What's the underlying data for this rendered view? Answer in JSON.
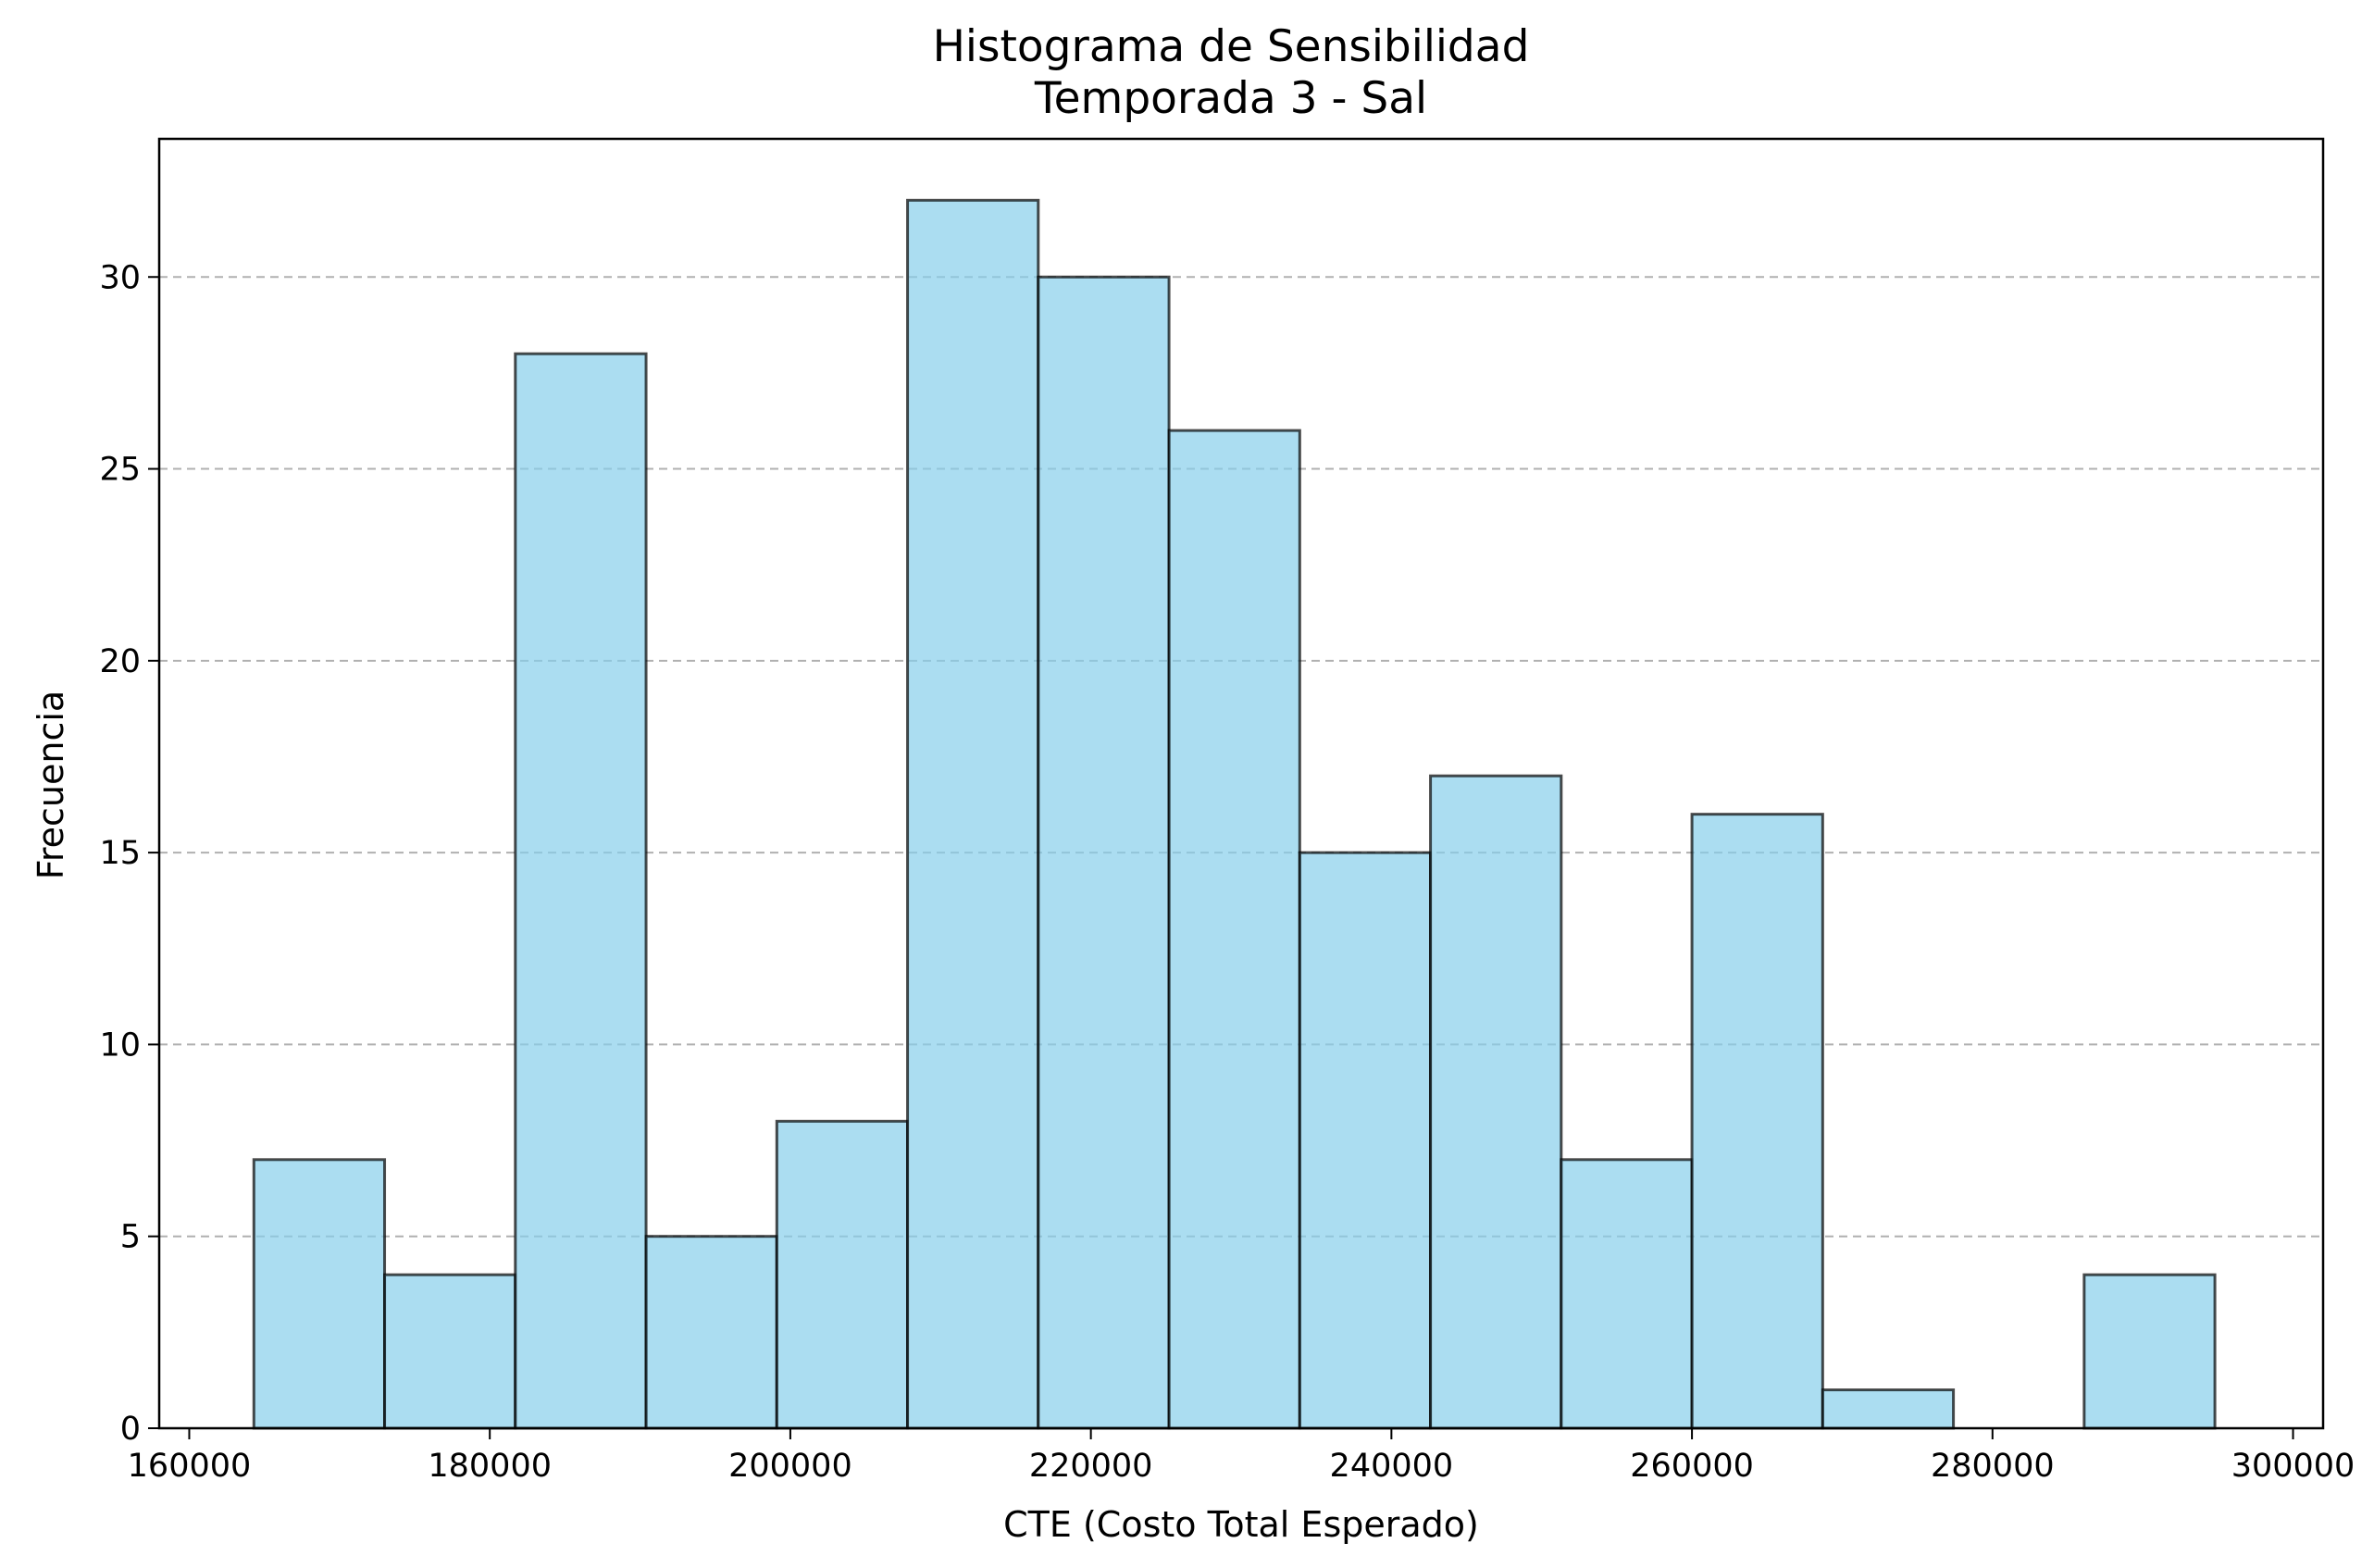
{
  "chart_data": {
    "type": "bar",
    "title": "Histograma de Sensibilidad",
    "subtitle": "Temporada 3 - Sal",
    "xlabel": "CTE (Costo Total Esperado)",
    "ylabel": "Frecuencia",
    "xlim": [
      158000,
      302000
    ],
    "ylim": [
      0,
      33.6
    ],
    "xticks": [
      160000,
      180000,
      200000,
      220000,
      240000,
      260000,
      280000,
      300000
    ],
    "yticks": [
      0,
      5,
      10,
      15,
      20,
      25,
      30
    ],
    "grid": "y-dashed",
    "bar_color": "#87CEEB",
    "edge_color": "#000000",
    "bins": [
      {
        "start": 164300,
        "end": 173000,
        "count": 7
      },
      {
        "start": 173000,
        "end": 181700,
        "count": 4
      },
      {
        "start": 181700,
        "end": 190400,
        "count": 28
      },
      {
        "start": 190400,
        "end": 199100,
        "count": 5
      },
      {
        "start": 199100,
        "end": 207800,
        "count": 8
      },
      {
        "start": 207800,
        "end": 216500,
        "count": 32
      },
      {
        "start": 216500,
        "end": 225200,
        "count": 30
      },
      {
        "start": 225200,
        "end": 233900,
        "count": 26
      },
      {
        "start": 233900,
        "end": 242600,
        "count": 15
      },
      {
        "start": 242600,
        "end": 251300,
        "count": 17
      },
      {
        "start": 251300,
        "end": 260000,
        "count": 7
      },
      {
        "start": 260000,
        "end": 268700,
        "count": 16
      },
      {
        "start": 268700,
        "end": 277400,
        "count": 1
      },
      {
        "start": 277400,
        "end": 286100,
        "count": 0
      },
      {
        "start": 286100,
        "end": 294800,
        "count": 4
      }
    ]
  }
}
